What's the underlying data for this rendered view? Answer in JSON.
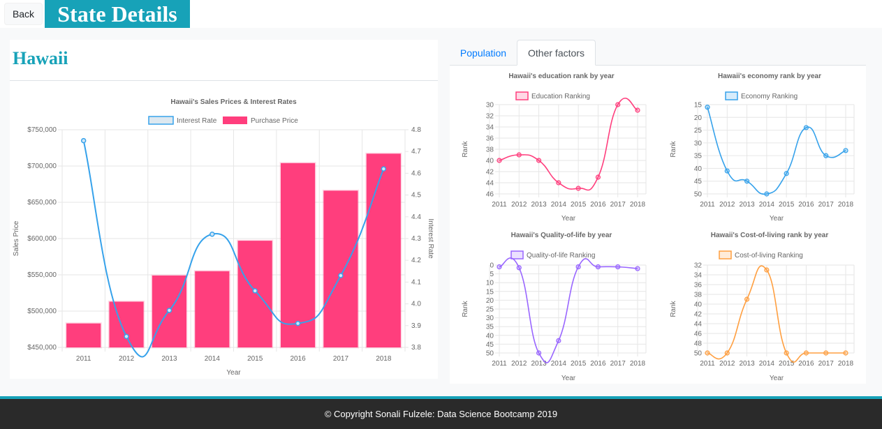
{
  "header": {
    "back_label": "Back",
    "title": "State Details"
  },
  "state": {
    "name": "Hawaii"
  },
  "tabs": [
    {
      "label": "Population",
      "active": false
    },
    {
      "label": "Other factors",
      "active": true
    }
  ],
  "footer": {
    "text": "© Copyright Sonali Fulzele: Data Science Bootcamp 2019"
  },
  "colors": {
    "accent": "#17a2b8",
    "pink": "#ff3e7d",
    "blue": "#36a2eb",
    "purple": "#9966ff",
    "orange": "#ff9f40",
    "link": "#007bff"
  },
  "chart_data": [
    {
      "type": "bar",
      "title": "Hawaii's Sales Prices & Interest Rates",
      "xlabel": "Year",
      "ylabel": "Sales Price",
      "y2label": "Interest Rate",
      "categories": [
        "2011",
        "2012",
        "2013",
        "2014",
        "2015",
        "2016",
        "2017",
        "2018"
      ],
      "yticks": [
        "$450,000",
        "$500,000",
        "$550,000",
        "$600,000",
        "$650,000",
        "$700,000",
        "$750,000"
      ],
      "y2ticks": [
        "3.8",
        "3.9",
        "4.0",
        "4.1",
        "4.2",
        "4.3",
        "4.4",
        "4.5",
        "4.6",
        "4.7",
        "4.8"
      ],
      "ylim": [
        450000,
        750000
      ],
      "y2lim": [
        3.8,
        4.8
      ],
      "series": [
        {
          "name": "Interest Rate",
          "kind": "line",
          "color": "#36a2eb",
          "values": [
            4.75,
            3.85,
            3.97,
            4.32,
            4.06,
            3.91,
            4.13,
            4.62
          ]
        },
        {
          "name": "Purchase Price",
          "kind": "bar",
          "color": "#ff3e7d",
          "values": [
            483000,
            513000,
            549000,
            555000,
            597000,
            704000,
            666000,
            717000
          ]
        }
      ],
      "legend": "top"
    },
    {
      "type": "line",
      "title": "Hawaii's education rank by year",
      "xlabel": "Year",
      "ylabel": "Rank",
      "categories": [
        "2011",
        "2012",
        "2013",
        "2014",
        "2015",
        "2016",
        "2017",
        "2018"
      ],
      "yticks": [
        "30",
        "32",
        "34",
        "36",
        "38",
        "40",
        "42",
        "44",
        "46"
      ],
      "ylim": [
        30,
        46
      ],
      "reversed": true,
      "series": [
        {
          "name": "Education Ranking",
          "color": "#ff3e7d",
          "values": [
            40,
            39,
            40,
            44,
            45,
            43,
            30,
            31
          ]
        }
      ]
    },
    {
      "type": "line",
      "title": "Hawaii's economy rank by year",
      "xlabel": "Year",
      "ylabel": "Rank",
      "categories": [
        "2011",
        "2012",
        "2013",
        "2014",
        "2015",
        "2016",
        "2017",
        "2018"
      ],
      "yticks": [
        "15",
        "20",
        "25",
        "30",
        "35",
        "40",
        "45",
        "50"
      ],
      "ylim": [
        15,
        50
      ],
      "reversed": true,
      "series": [
        {
          "name": "Economy Ranking",
          "color": "#36a2eb",
          "values": [
            16,
            41,
            45,
            50,
            42,
            24,
            35,
            33
          ]
        }
      ]
    },
    {
      "type": "line",
      "title": "Hawaii's Quality-of-life by year",
      "xlabel": "Year",
      "ylabel": "Rank",
      "categories": [
        "2011",
        "2012",
        "2013",
        "2014",
        "2015",
        "2016",
        "2017",
        "2018"
      ],
      "yticks": [
        "0",
        "5",
        "10",
        "15",
        "20",
        "25",
        "30",
        "35",
        "40",
        "45",
        "50"
      ],
      "ylim": [
        0,
        50
      ],
      "reversed": true,
      "series": [
        {
          "name": "Quality-of-life Ranking",
          "color": "#9966ff",
          "values": [
            1,
            1.5,
            50,
            43,
            1,
            1,
            1,
            2
          ]
        }
      ]
    },
    {
      "type": "line",
      "title": "Hawaii's Cost-of-living rank by year",
      "xlabel": "Year",
      "ylabel": "Rank",
      "categories": [
        "2011",
        "2012",
        "2013",
        "2014",
        "2015",
        "2016",
        "2017",
        "2018"
      ],
      "yticks": [
        "32",
        "34",
        "36",
        "38",
        "40",
        "42",
        "44",
        "46",
        "48",
        "50"
      ],
      "ylim": [
        32,
        50
      ],
      "reversed": true,
      "series": [
        {
          "name": "Cost-of-living Ranking",
          "color": "#ff9f40",
          "values": [
            50,
            50,
            39,
            33,
            50,
            50,
            50,
            50
          ]
        }
      ]
    }
  ]
}
